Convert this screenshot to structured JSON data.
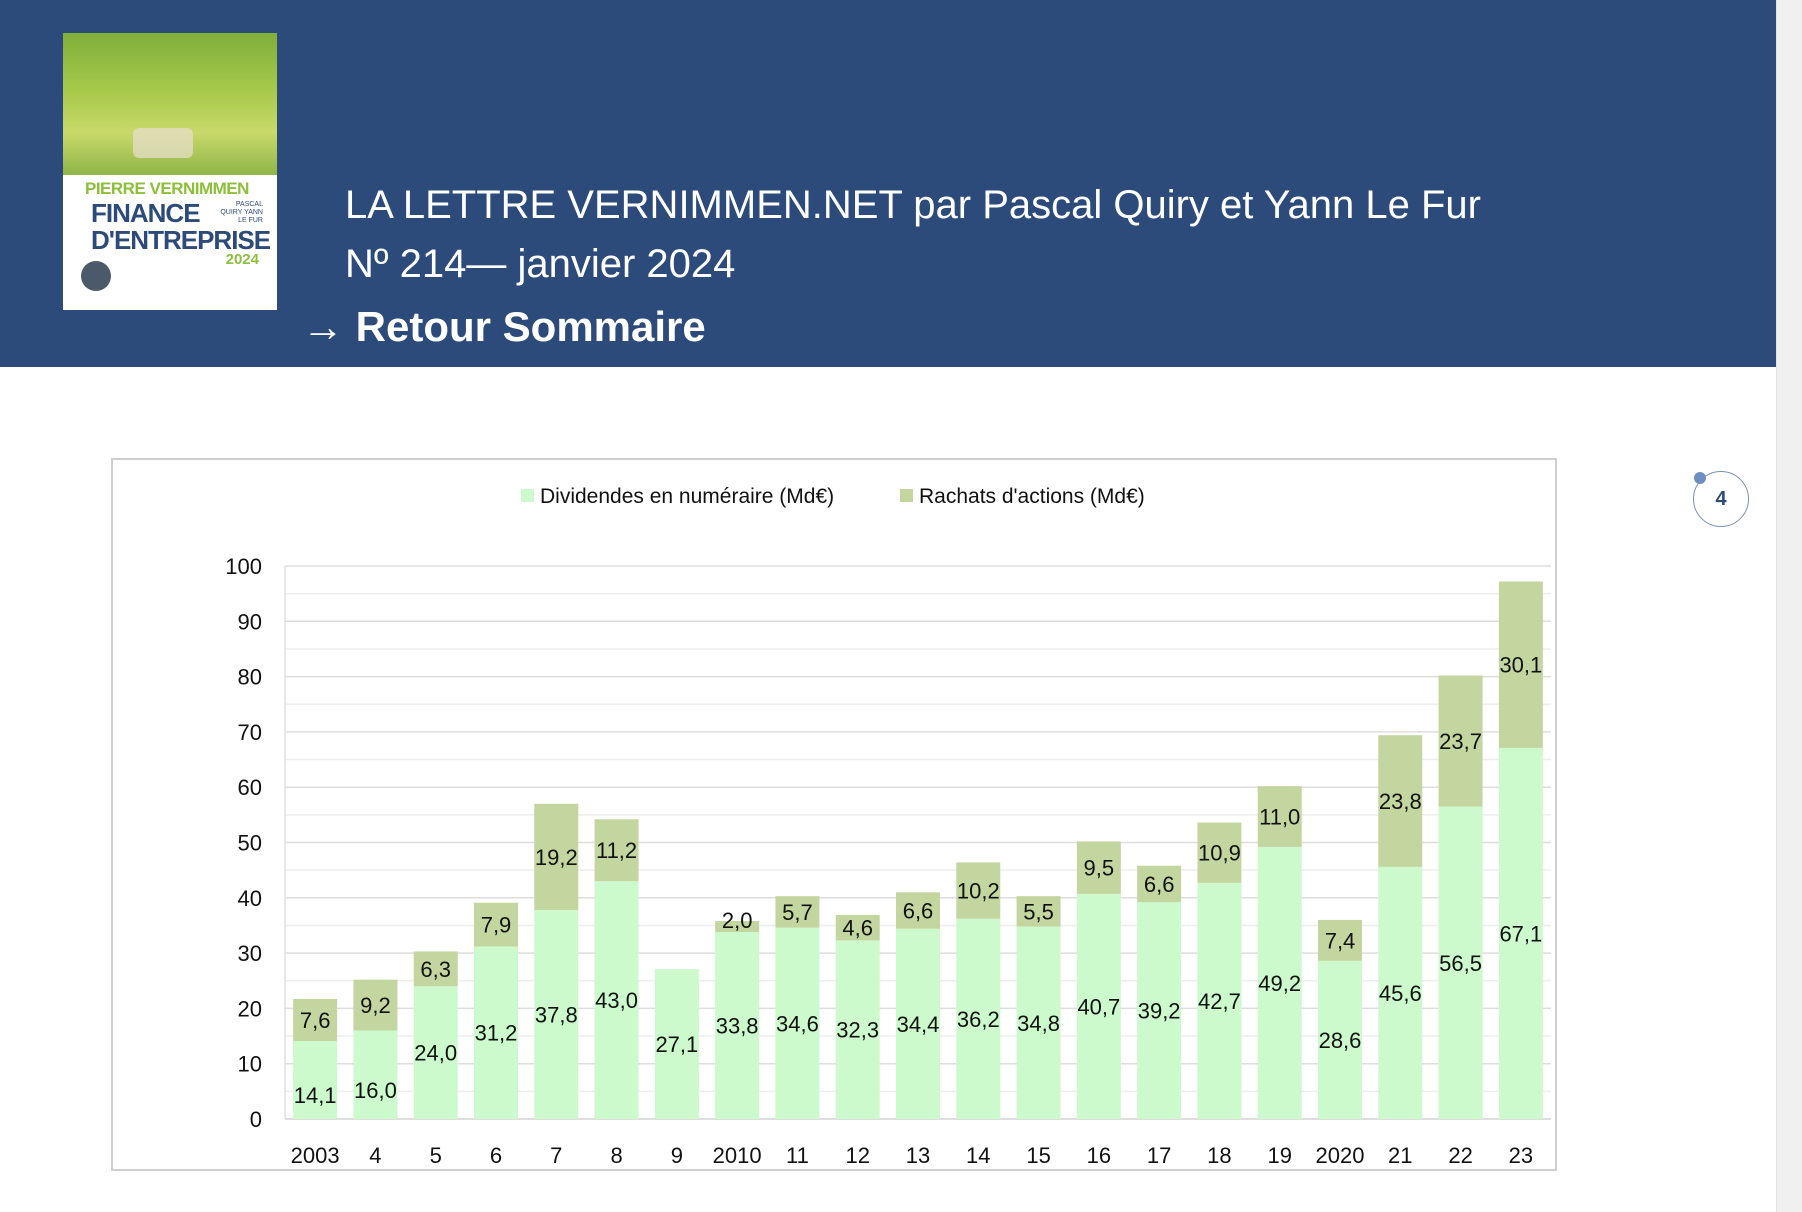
{
  "header": {
    "cover_lines": [
      "PIERRE VERNIMMEN",
      "FINANCE",
      "D'ENTREPRISE",
      "PASCAL QUIRY YANN LE FUR",
      "2024"
    ],
    "title_line1": "LA LETTRE VERNIMMEN.NET par Pascal Quiry et Yann Le Fur",
    "title_line2": "Nº 214— janvier 2024",
    "back_link": "→ Retour Sommaire"
  },
  "page_badge": "4",
  "colors": {
    "header": "#2c4a7a",
    "dividendes": "#ccfacc",
    "rachats": "#c4d6a0"
  },
  "chart_data": {
    "type": "bar",
    "stacked": true,
    "title": "",
    "xlabel": "",
    "ylabel": "",
    "ylim": [
      0,
      100
    ],
    "yticks": [
      0,
      10,
      20,
      30,
      40,
      50,
      60,
      70,
      80,
      90,
      100
    ],
    "grid": true,
    "legend_position": "top",
    "categories": [
      "2003",
      "4",
      "5",
      "6",
      "7",
      "8",
      "9",
      "2010",
      "11",
      "12",
      "13",
      "14",
      "15",
      "16",
      "17",
      "18",
      "19",
      "2020",
      "21",
      "22",
      "23"
    ],
    "series": [
      {
        "name": "Dividendes en numéraire (Md€)",
        "values": [
          14.1,
          16.0,
          24.0,
          31.2,
          37.8,
          43.0,
          27.1,
          33.8,
          34.6,
          32.3,
          34.4,
          36.2,
          34.8,
          40.7,
          39.2,
          42.7,
          49.2,
          28.6,
          45.6,
          56.5,
          67.1
        ]
      },
      {
        "name": "Rachats d'actions (Md€)",
        "values": [
          7.6,
          9.2,
          6.3,
          7.9,
          19.2,
          11.2,
          null,
          2.0,
          5.7,
          4.6,
          6.6,
          10.2,
          5.5,
          9.5,
          6.6,
          10.9,
          11.0,
          7.4,
          23.8,
          23.7,
          30.1
        ]
      }
    ]
  }
}
